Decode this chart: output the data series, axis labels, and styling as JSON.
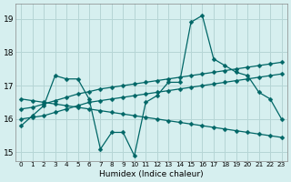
{
  "xlabel": "Humidex (Indice chaleur)",
  "bg_color": "#d6efef",
  "grid_color": "#b5d5d5",
  "line_color": "#006666",
  "markersize": 2.5,
  "linewidth": 0.9,
  "xlim": [
    -0.5,
    23.5
  ],
  "ylim": [
    14.75,
    19.45
  ],
  "yticks": [
    15,
    16,
    17,
    18,
    19
  ],
  "xticks": [
    0,
    1,
    2,
    3,
    4,
    5,
    6,
    7,
    8,
    9,
    10,
    11,
    12,
    13,
    14,
    15,
    16,
    17,
    18,
    19,
    20,
    21,
    22,
    23
  ],
  "lines": [
    {
      "x": [
        0,
        1,
        2,
        3,
        4,
        5,
        6,
        7,
        8,
        9,
        10,
        11,
        12,
        13,
        14,
        15,
        16,
        17,
        18,
        19,
        20,
        21,
        22,
        23
      ],
      "y": [
        15.8,
        16.1,
        16.4,
        17.3,
        17.2,
        17.2,
        16.6,
        15.1,
        15.6,
        15.6,
        14.9,
        16.5,
        16.7,
        17.1,
        17.1,
        18.9,
        19.1,
        17.8,
        17.6,
        17.4,
        17.3,
        16.8,
        16.6,
        16.0
      ]
    },
    {
      "x": [
        0,
        1,
        2,
        3,
        4,
        5,
        6,
        7,
        8,
        9,
        10,
        11,
        12,
        13,
        14,
        15,
        16,
        17,
        18,
        19,
        20,
        21,
        22,
        23
      ],
      "y": [
        16.6,
        16.55,
        16.5,
        16.45,
        16.4,
        16.35,
        16.3,
        16.25,
        16.2,
        16.15,
        16.1,
        16.05,
        16.0,
        15.95,
        15.9,
        15.85,
        15.8,
        15.75,
        15.7,
        15.65,
        15.6,
        15.55,
        15.5,
        15.45
      ]
    },
    {
      "x": [
        0,
        1,
        2,
        3,
        4,
        5,
        6,
        7,
        8,
        9,
        10,
        11,
        12,
        13,
        14,
        15,
        16,
        17,
        18,
        19,
        20,
        21,
        22,
        23
      ],
      "y": [
        16.0,
        16.05,
        16.1,
        16.2,
        16.3,
        16.4,
        16.5,
        16.55,
        16.6,
        16.65,
        16.7,
        16.75,
        16.8,
        16.85,
        16.9,
        16.95,
        17.0,
        17.05,
        17.1,
        17.15,
        17.2,
        17.25,
        17.3,
        17.35
      ]
    },
    {
      "x": [
        0,
        1,
        2,
        3,
        4,
        5,
        6,
        7,
        8,
        9,
        10,
        11,
        12,
        13,
        14,
        15,
        16,
        17,
        18,
        19,
        20,
        21,
        22,
        23
      ],
      "y": [
        16.3,
        16.35,
        16.45,
        16.55,
        16.65,
        16.75,
        16.82,
        16.9,
        16.95,
        17.0,
        17.05,
        17.1,
        17.15,
        17.2,
        17.25,
        17.3,
        17.35,
        17.4,
        17.45,
        17.5,
        17.55,
        17.6,
        17.65,
        17.7
      ]
    }
  ]
}
